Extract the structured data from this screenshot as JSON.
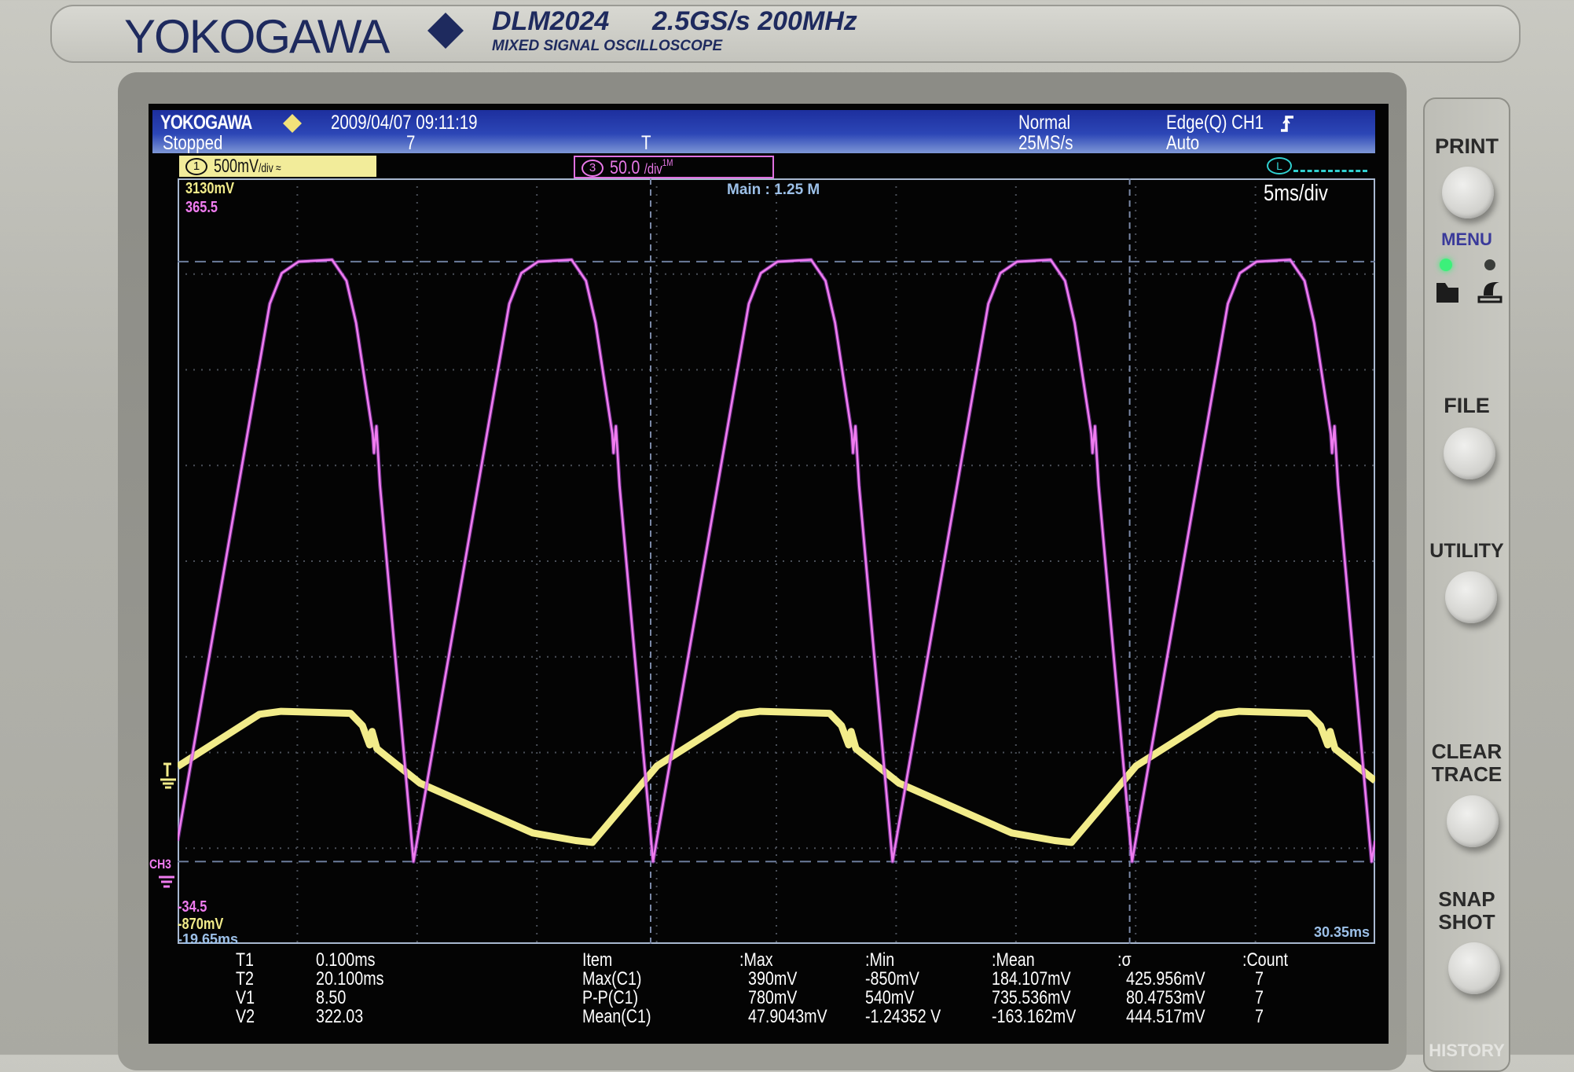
{
  "bezel": {
    "brand": "YOKOGAWA",
    "model": "DLM2024",
    "specs": "2.5GS/s 200MHz",
    "subtitle": "MIXED SIGNAL OSCILLOSCOPE"
  },
  "header": {
    "brand": "YOKOGAWA",
    "datetime": "2009/04/07 09:11:19",
    "status": "Stopped",
    "acq_count": "7",
    "trigger_position_marker": "T",
    "acq_mode": "Normal",
    "sample_rate": "25MS/s",
    "trigger_type": "Edge(Q) CH1",
    "trigger_mode": "Auto"
  },
  "channels": {
    "ch1": {
      "number": "1",
      "scale": "500mV",
      "per_div": "/div",
      "color": "#f2ec8a"
    },
    "ch3": {
      "number": "3",
      "scale": "50.0",
      "per_div": "/div",
      "color": "#f07cf0"
    },
    "logic_label": "L"
  },
  "display": {
    "ch1_top": "3130mV",
    "ch3_top": "365.5",
    "record_length": "Main : 1.25 M",
    "timebase": "5ms/div",
    "ch3_label": "CH3",
    "ch3_bottom": "-34.5",
    "ch1_bottom": "-870mV",
    "time_start": "-19.65ms",
    "time_end": "30.35ms"
  },
  "cursors": [
    {
      "label": "T1",
      "value": "0.100ms"
    },
    {
      "label": "T2",
      "value": "20.100ms"
    },
    {
      "label": "V1",
      "value": "8.50"
    },
    {
      "label": "V2",
      "value": "322.03"
    }
  ],
  "measurements": {
    "headers": [
      "Item",
      ":Max",
      ":Min",
      ":Mean",
      ":σ",
      ":Count"
    ],
    "rows": [
      [
        "Max(C1)",
        "390mV",
        "-850mV",
        "184.107mV",
        "425.956mV",
        "7"
      ],
      [
        "P-P(C1)",
        "780mV",
        "540mV",
        "735.536mV",
        "80.4753mV",
        "7"
      ],
      [
        "Mean(C1)",
        "47.9043mV",
        "-1.24352 V",
        "-163.162mV",
        "444.517mV",
        "7"
      ]
    ]
  },
  "panel": {
    "buttons": [
      {
        "label": "PRINT"
      },
      {
        "label": "FILE"
      },
      {
        "label": "UTILITY"
      },
      {
        "label": "CLEAR TRACE"
      },
      {
        "label": "SNAP SHOT"
      }
    ],
    "menu_label": "MENU",
    "menu_led_active": "file",
    "history_label": "HISTORY"
  },
  "chart_data": {
    "type": "line",
    "x_unit": "ms",
    "xlim": [
      -19.65,
      30.35
    ],
    "x_divisions": 10,
    "y_divisions": 8,
    "grid": true,
    "cursors": {
      "T1": 0.1,
      "T2": 20.1,
      "V1": 8.5,
      "V2": 322.03
    },
    "series": [
      {
        "channel": "CH1",
        "color": "#f2ec8a",
        "unit": "mV",
        "ylim": [
          -870,
          3130
        ],
        "points": [
          [
            -19.65,
            57
          ],
          [
            -16.23,
            330
          ],
          [
            -15.33,
            345
          ],
          [
            -12.43,
            335
          ],
          [
            -11.93,
            270
          ],
          [
            -11.63,
            170
          ],
          [
            -11.53,
            240
          ],
          [
            -11.33,
            150
          ],
          [
            -9.53,
            -30
          ],
          [
            -4.83,
            -290
          ],
          [
            -3.03,
            -330
          ],
          [
            -2.33,
            -340
          ],
          [
            0.37,
            60
          ],
          [
            3.77,
            330
          ],
          [
            4.67,
            345
          ],
          [
            7.57,
            335
          ],
          [
            8.07,
            270
          ],
          [
            8.37,
            170
          ],
          [
            8.47,
            240
          ],
          [
            8.67,
            150
          ],
          [
            10.47,
            -30
          ],
          [
            15.17,
            -290
          ],
          [
            16.97,
            -330
          ],
          [
            17.67,
            -340
          ],
          [
            20.37,
            60
          ],
          [
            23.77,
            330
          ],
          [
            24.67,
            345
          ],
          [
            27.57,
            335
          ],
          [
            28.07,
            270
          ],
          [
            28.37,
            170
          ],
          [
            28.47,
            240
          ],
          [
            28.67,
            150
          ],
          [
            30.35,
            -18
          ]
        ]
      },
      {
        "channel": "CH3",
        "color": "#f07cf0",
        "ylim": [
          -34.5,
          365.5
        ],
        "points": [
          [
            -19.65,
            19.4
          ],
          [
            -15.8,
            300
          ],
          [
            -15.3,
            316
          ],
          [
            -14.6,
            322
          ],
          [
            -13.2,
            323
          ],
          [
            -12.6,
            312
          ],
          [
            -12.2,
            290
          ],
          [
            -11.5,
            232
          ],
          [
            -11.45,
            222
          ],
          [
            -11.35,
            236
          ],
          [
            -11.2,
            205
          ],
          [
            -9.8,
            8.5
          ],
          [
            -5.8,
            300
          ],
          [
            -5.3,
            316
          ],
          [
            -4.6,
            322
          ],
          [
            -3.2,
            323
          ],
          [
            -2.6,
            312
          ],
          [
            -2.2,
            290
          ],
          [
            -1.5,
            232
          ],
          [
            -1.45,
            222
          ],
          [
            -1.35,
            236
          ],
          [
            -1.2,
            205
          ],
          [
            0.2,
            8.5
          ],
          [
            4.2,
            300
          ],
          [
            4.7,
            316
          ],
          [
            5.4,
            322
          ],
          [
            6.8,
            323
          ],
          [
            7.4,
            312
          ],
          [
            7.8,
            290
          ],
          [
            8.5,
            232
          ],
          [
            8.55,
            222
          ],
          [
            8.65,
            236
          ],
          [
            8.8,
            205
          ],
          [
            10.2,
            8.5
          ],
          [
            14.2,
            300
          ],
          [
            14.7,
            316
          ],
          [
            15.4,
            322
          ],
          [
            16.8,
            323
          ],
          [
            17.4,
            312
          ],
          [
            17.8,
            290
          ],
          [
            18.5,
            232
          ],
          [
            18.55,
            222
          ],
          [
            18.65,
            236
          ],
          [
            18.8,
            205
          ],
          [
            20.2,
            8.5
          ],
          [
            24.2,
            300
          ],
          [
            24.7,
            316
          ],
          [
            25.4,
            322
          ],
          [
            26.8,
            323
          ],
          [
            27.4,
            312
          ],
          [
            27.8,
            290
          ],
          [
            28.5,
            232
          ],
          [
            28.55,
            222
          ],
          [
            28.65,
            236
          ],
          [
            28.8,
            205
          ],
          [
            30.2,
            8.5
          ],
          [
            30.35,
            19.4
          ]
        ]
      }
    ]
  }
}
